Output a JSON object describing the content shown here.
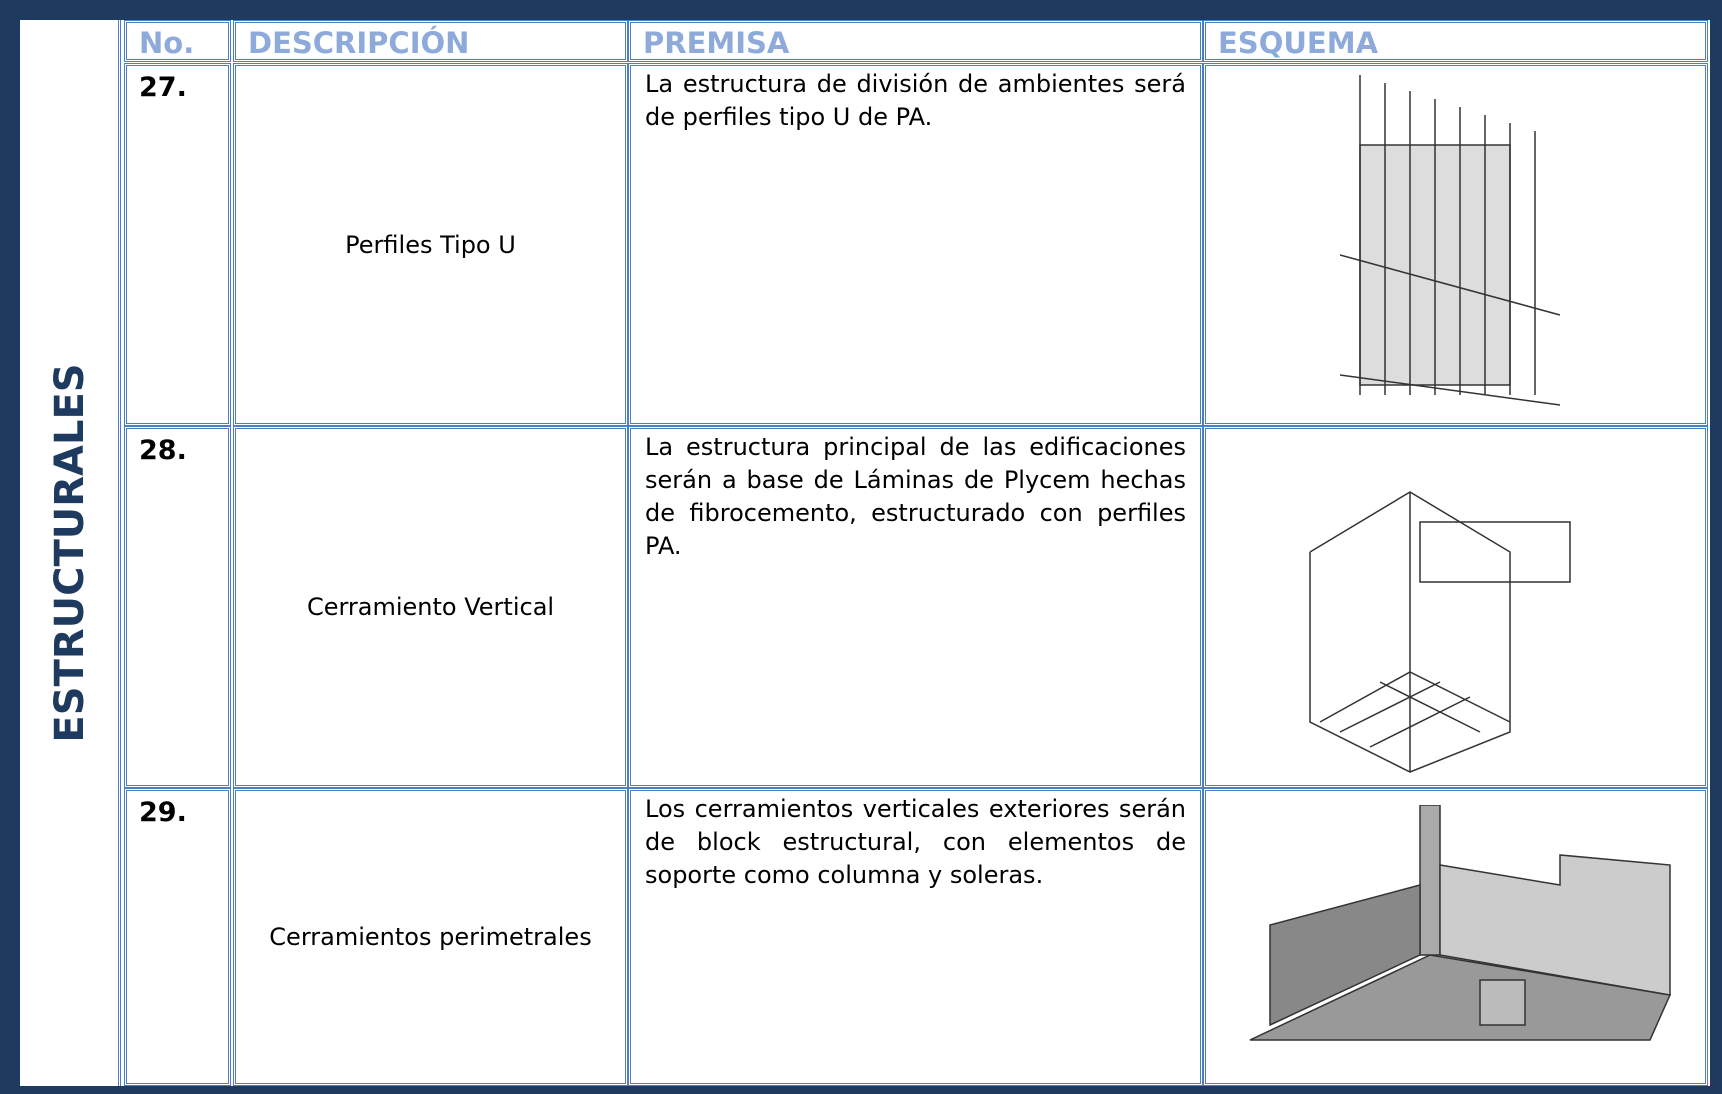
{
  "section": "ESTRUCTURALES",
  "headers": [
    "No.",
    "DESCRIPCIÓN",
    "PREMISA",
    "ESQUEMA"
  ],
  "rows": [
    {
      "no": "27.",
      "description": "Perfiles Tipo U",
      "premise": "La estructura de división de ambientes será de perfiles tipo U de PA."
    },
    {
      "no": "28.",
      "description": "Cerramiento Vertical",
      "premise": "La estructura principal de las edificaciones serán a base de Láminas de Plycem hechas de fibrocemento, estructurado con perfiles PA."
    },
    {
      "no": "29.",
      "description": "Cerramientos perimetrales",
      "premise": "Los cerramientos verticales exteriores serán de block estructural, con elementos de soporte como columna y soleras."
    }
  ]
}
